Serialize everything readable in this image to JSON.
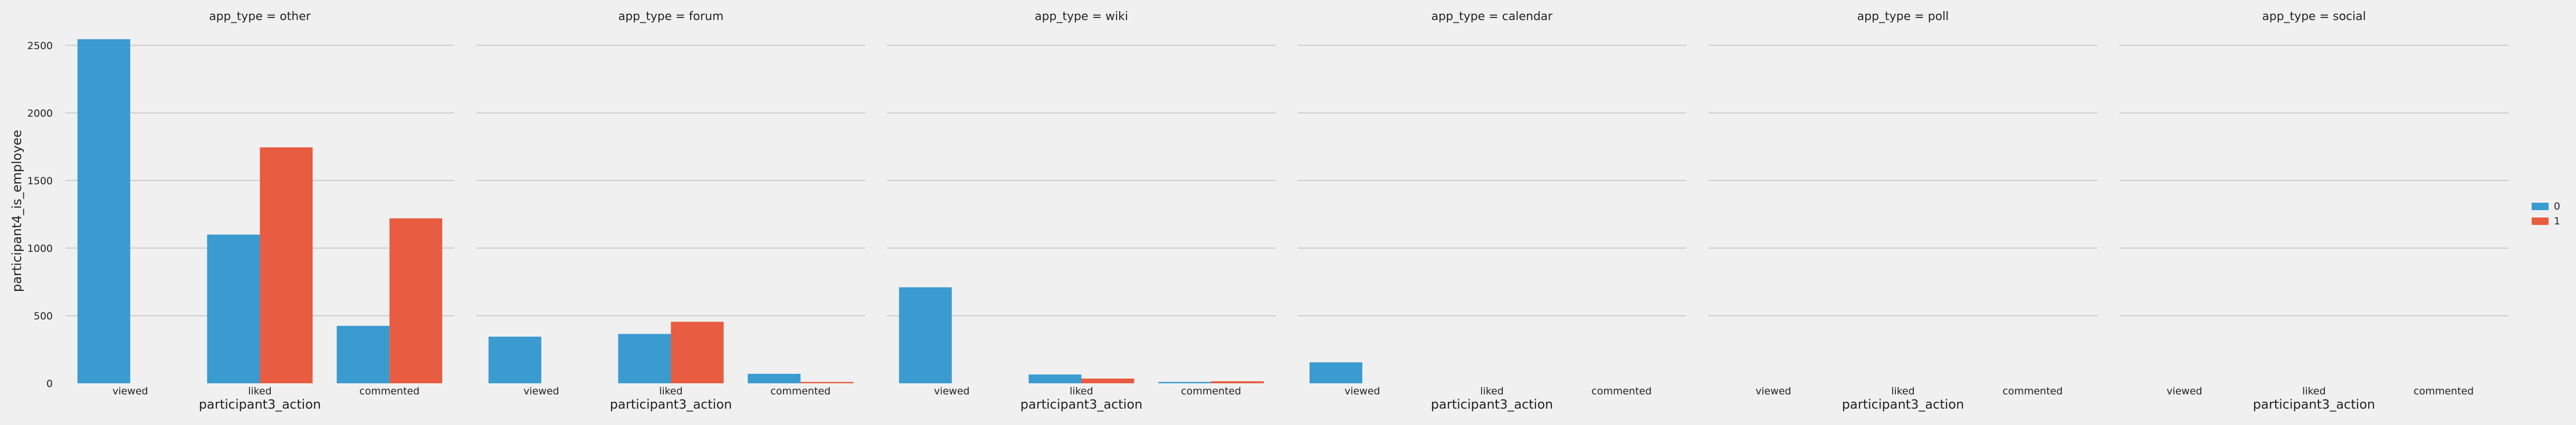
{
  "chart_data": {
    "type": "bar",
    "ylabel": "participant4_is_employee",
    "xlabel": "participant3_action",
    "categories": [
      "viewed",
      "liked",
      "commented"
    ],
    "y_ticks": [
      "0",
      "500",
      "1000",
      "1500",
      "2000",
      "2500"
    ],
    "ylim": [
      0,
      2550
    ],
    "grid": "horizontal",
    "legend_placement": "right",
    "series": [
      {
        "name": "0",
        "color": "#3a9bd0"
      },
      {
        "name": "1",
        "color": "#e85c41"
      }
    ],
    "facets": [
      {
        "title": "app_type = other",
        "values": [
          [
            2545,
            null
          ],
          [
            1100,
            1745
          ],
          [
            425,
            1220
          ]
        ]
      },
      {
        "title": "app_type = forum",
        "values": [
          [
            345,
            null
          ],
          [
            365,
            455
          ],
          [
            70,
            10
          ]
        ]
      },
      {
        "title": "app_type = wiki",
        "values": [
          [
            710,
            null
          ],
          [
            65,
            35
          ],
          [
            10,
            15
          ]
        ]
      },
      {
        "title": "app_type = calendar",
        "values": [
          [
            155,
            null
          ],
          [
            null,
            null
          ],
          [
            null,
            null
          ]
        ]
      },
      {
        "title": "app_type = poll",
        "values": [
          [
            null,
            null
          ],
          [
            null,
            null
          ],
          [
            null,
            null
          ]
        ]
      },
      {
        "title": "app_type = social",
        "values": [
          [
            null,
            null
          ],
          [
            null,
            null
          ],
          [
            null,
            null
          ]
        ]
      }
    ]
  }
}
